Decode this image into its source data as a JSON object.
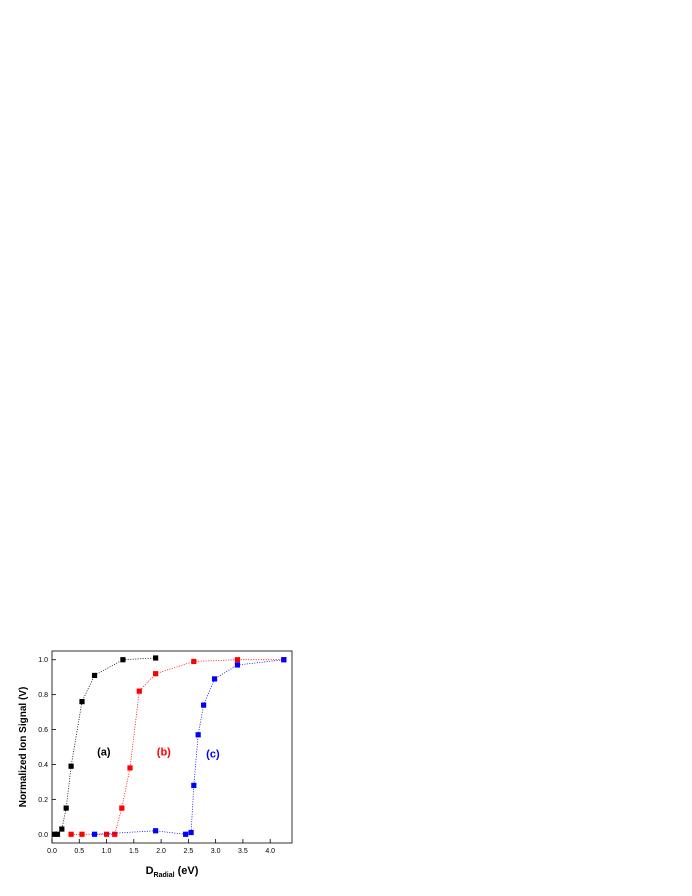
{
  "chart_data": {
    "type": "scatter",
    "title": "",
    "xlabel": "D",
    "xlabel_sub": "Radial",
    "xlabel_unit": " (eV)",
    "ylabel": "Normalized Ion Signal (V)",
    "xlim": [
      0.0,
      4.4
    ],
    "ylim": [
      -0.05,
      1.05
    ],
    "xticks": [
      0.0,
      0.5,
      1.0,
      1.5,
      2.0,
      2.5,
      3.0,
      3.5,
      4.0
    ],
    "xtick_labels": [
      "0.0",
      "0.5",
      "1.0",
      "1.5",
      "2.0",
      "2.5",
      "3.0",
      "3.5",
      "4.0"
    ],
    "yticks": [
      0.0,
      0.2,
      0.4,
      0.6,
      0.8,
      1.0
    ],
    "ytick_labels": [
      "0.0",
      "0.2",
      "0.4",
      "0.6",
      "0.8",
      "1.0"
    ],
    "grid": false,
    "legend": "none",
    "series": [
      {
        "name": "(a)",
        "color": "#000000",
        "x": [
          0.05,
          0.1,
          0.18,
          0.26,
          0.35,
          0.55,
          0.78,
          1.3,
          1.9
        ],
        "y": [
          0.0,
          0.0,
          0.03,
          0.15,
          0.39,
          0.76,
          0.91,
          1.0,
          1.01
        ]
      },
      {
        "name": "(b)",
        "color": "#ff0000",
        "x": [
          0.35,
          0.55,
          1.0,
          1.15,
          1.28,
          1.43,
          1.6,
          1.9,
          2.6,
          3.4,
          4.25
        ],
        "y": [
          0.0,
          0.0,
          0.0,
          0.0,
          0.15,
          0.38,
          0.82,
          0.92,
          0.99,
          1.0,
          1.0
        ]
      },
      {
        "name": "(c)",
        "color": "#0000ff",
        "x": [
          0.78,
          1.9,
          2.45,
          2.55,
          2.6,
          2.68,
          2.78,
          2.98,
          3.4,
          4.25
        ],
        "y": [
          0.0,
          0.02,
          0.0,
          0.01,
          0.28,
          0.57,
          0.74,
          0.89,
          0.97,
          1.0
        ]
      }
    ],
    "annotations": [
      {
        "text": "(a)",
        "x": 0.95,
        "y": 0.45,
        "color": "#000000"
      },
      {
        "text": "(b)",
        "x": 2.05,
        "y": 0.45,
        "color": "#ff0000"
      },
      {
        "text": "(c)",
        "x": 2.95,
        "y": 0.44,
        "color": "#0000ff"
      }
    ]
  }
}
